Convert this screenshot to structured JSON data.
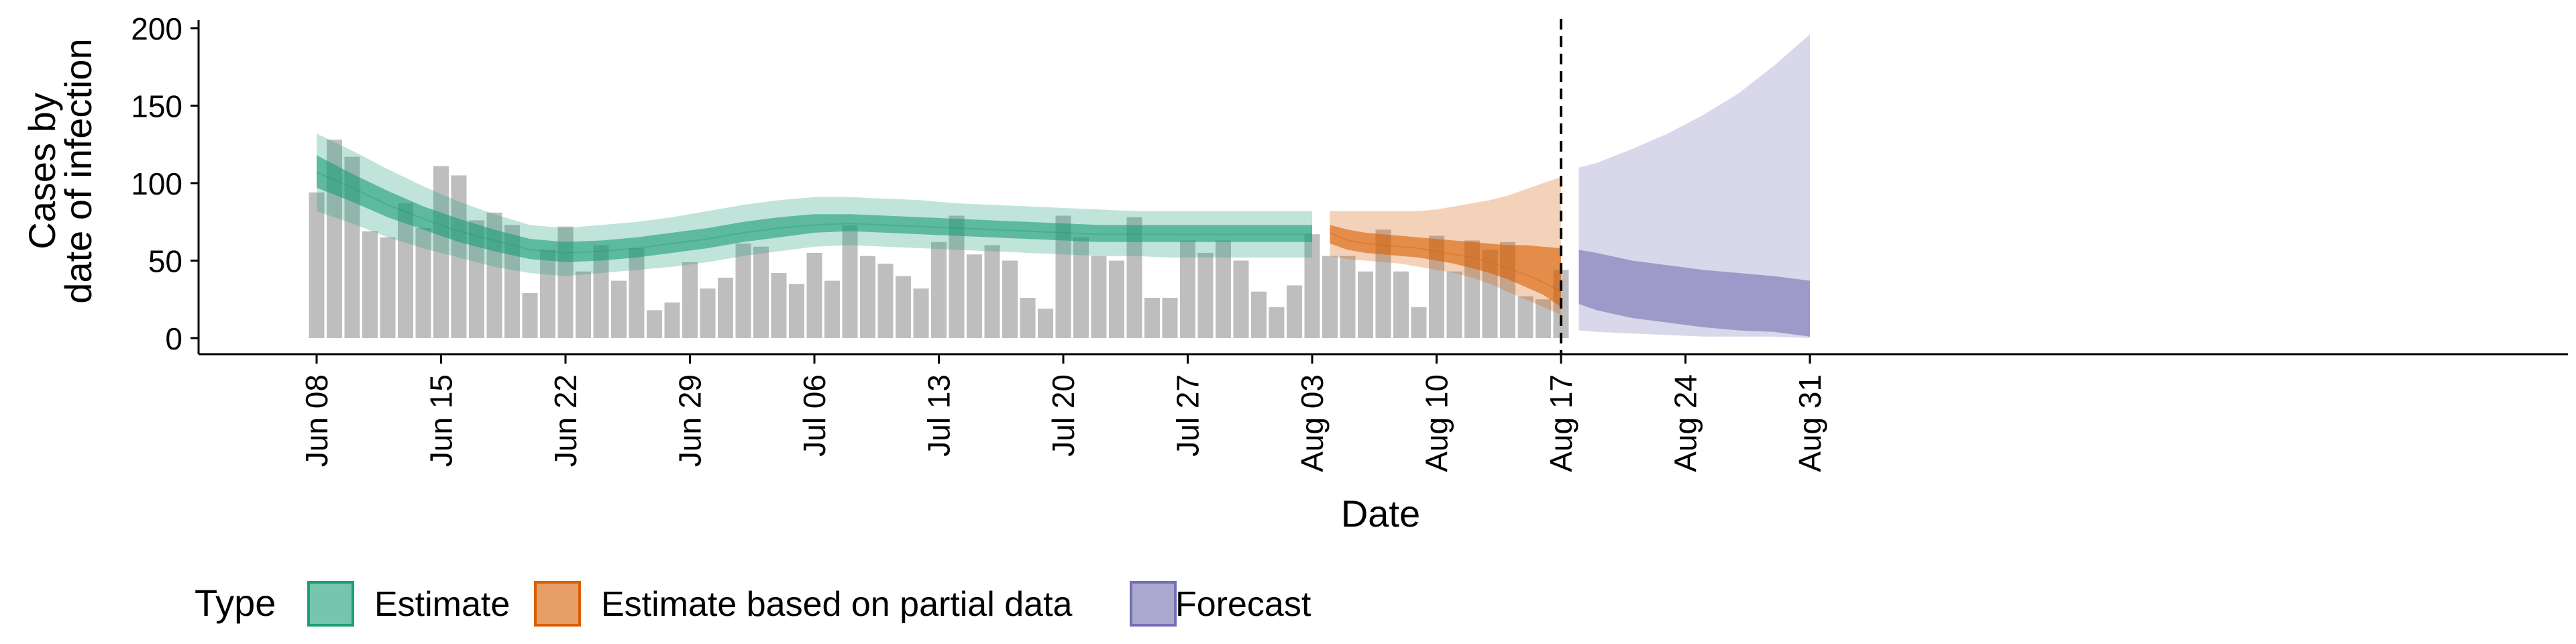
{
  "chart_data": {
    "type": "bar",
    "xlabel": "Date",
    "ylabel_lines": [
      "Cases by",
      "date of infection"
    ],
    "ylim": [
      0,
      200
    ],
    "y_ticks": [
      0,
      50,
      100,
      150,
      200
    ],
    "x_ticks": [
      {
        "day": 0,
        "label": "Jun 08"
      },
      {
        "day": 7,
        "label": "Jun 15"
      },
      {
        "day": 14,
        "label": "Jun 22"
      },
      {
        "day": 21,
        "label": "Jun 29"
      },
      {
        "day": 28,
        "label": "Jul 06"
      },
      {
        "day": 35,
        "label": "Jul 13"
      },
      {
        "day": 42,
        "label": "Jul 20"
      },
      {
        "day": 49,
        "label": "Jul 27"
      },
      {
        "day": 56,
        "label": "Aug 03"
      },
      {
        "day": 63,
        "label": "Aug 10"
      },
      {
        "day": 70,
        "label": "Aug 17"
      },
      {
        "day": 77,
        "label": "Aug 24"
      },
      {
        "day": 84,
        "label": "Aug 31"
      }
    ],
    "start_date": "Jun 08",
    "cutoff_date": "Aug 17",
    "observed_cases": [
      94,
      128,
      117,
      69,
      65,
      87,
      71,
      111,
      105,
      76,
      81,
      73,
      29,
      57,
      72,
      43,
      60,
      37,
      58,
      18,
      23,
      49,
      32,
      39,
      61,
      59,
      42,
      35,
      55,
      37,
      73,
      53,
      48,
      40,
      32,
      62,
      79,
      54,
      60,
      50,
      26,
      19,
      79,
      65,
      53,
      50,
      78,
      26,
      26,
      63,
      55,
      63,
      50,
      30,
      20,
      34,
      67,
      53,
      53,
      43,
      70,
      43,
      20,
      66,
      43,
      63,
      57,
      62,
      27,
      25,
      44
    ],
    "legend_title": "Type",
    "legend_position": "bottom",
    "series": [
      {
        "name": "Estimate",
        "color": "#1B9E77",
        "x": [
          0,
          2,
          4,
          6,
          8,
          10,
          12,
          14,
          16,
          18,
          20,
          22,
          24,
          26,
          28,
          30,
          32,
          34,
          36,
          38,
          40,
          42,
          44,
          46,
          48,
          50,
          52,
          54,
          56
        ],
        "median": [
          107,
          97,
          86,
          77,
          69,
          63,
          57,
          55,
          56,
          58,
          61,
          64,
          68,
          71,
          73,
          74,
          73,
          72,
          71,
          70,
          69,
          68,
          67,
          67,
          67,
          67,
          67,
          67,
          67
        ],
        "inner_lo": [
          97,
          88,
          78,
          70,
          62,
          56,
          51,
          49,
          50,
          52,
          55,
          58,
          62,
          65,
          68,
          69,
          68,
          67,
          66,
          65,
          64,
          63,
          62,
          62,
          62,
          62,
          62,
          62,
          62
        ],
        "inner_hi": [
          118,
          106,
          95,
          85,
          77,
          70,
          64,
          62,
          63,
          65,
          68,
          71,
          75,
          78,
          80,
          80,
          79,
          78,
          77,
          76,
          75,
          74,
          73,
          73,
          73,
          73,
          73,
          73,
          73
        ],
        "outer_lo": [
          82,
          74,
          65,
          58,
          52,
          46,
          42,
          40,
          42,
          44,
          46,
          49,
          53,
          56,
          59,
          60,
          59,
          58,
          57,
          56,
          55,
          54,
          53,
          53,
          52,
          52,
          52,
          52,
          52
        ],
        "outer_hi": [
          132,
          121,
          109,
          98,
          88,
          80,
          73,
          71,
          73,
          75,
          78,
          82,
          86,
          89,
          91,
          91,
          90,
          89,
          87,
          86,
          85,
          84,
          83,
          82,
          82,
          82,
          82,
          82,
          82
        ]
      },
      {
        "name": "Estimate based on partial data",
        "color": "#D95F02",
        "x": [
          57,
          58,
          59,
          60,
          61,
          62,
          63,
          64,
          65,
          66,
          67,
          68,
          69,
          70
        ],
        "median": [
          68,
          63,
          61,
          60,
          59,
          58,
          56,
          54,
          52,
          49,
          45,
          41,
          36,
          30
        ],
        "inner_lo": [
          61,
          57,
          55,
          54,
          53,
          52,
          50,
          48,
          45,
          42,
          38,
          33,
          28,
          20
        ],
        "inner_hi": [
          73,
          70,
          68,
          67,
          66,
          65,
          64,
          63,
          62,
          61,
          60,
          60,
          59,
          58
        ],
        "outer_lo": [
          53,
          51,
          50,
          49,
          48,
          46,
          44,
          42,
          39,
          35,
          30,
          25,
          20,
          15
        ],
        "outer_hi": [
          82,
          82,
          82,
          82,
          82,
          82,
          83,
          85,
          87,
          89,
          92,
          96,
          100,
          104
        ]
      },
      {
        "name": "Forecast",
        "color": "#7570B3",
        "x": [
          71,
          72,
          74,
          76,
          78,
          80,
          82,
          84
        ],
        "inner_lo": [
          22,
          18,
          13,
          10,
          7,
          5,
          4,
          1
        ],
        "inner_hi": [
          57,
          55,
          50,
          47,
          44,
          42,
          40,
          37
        ],
        "outer_lo": [
          5,
          4,
          3,
          2,
          1,
          1,
          1,
          0
        ],
        "outer_hi": [
          110,
          113,
          122,
          132,
          144,
          158,
          176,
          196
        ]
      }
    ]
  }
}
